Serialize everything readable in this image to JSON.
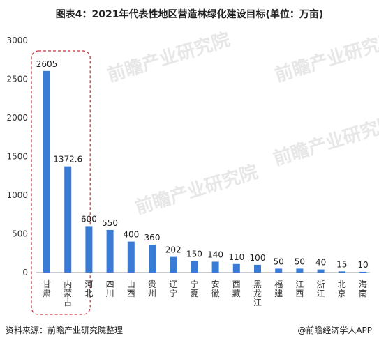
{
  "title": "图表4：2021年代表性地区营造林绿化建设目标(单位：万亩)",
  "source": "资料来源：前瞻产业研究院整理",
  "brand": "@前瞻经济学人APP",
  "watermark": "前瞻产业研究院",
  "colors": {
    "bar": "#3a7bd5",
    "highlight_box": "#c0323a"
  },
  "chart_data": {
    "type": "bar",
    "title": "图表4：2021年代表性地区营造林绿化建设目标(单位：万亩)",
    "xlabel": "",
    "ylabel": "",
    "ylim": [
      0,
      3000
    ],
    "yticks": [
      0,
      500,
      1000,
      1500,
      2000,
      2500,
      3000
    ],
    "grid": false,
    "categories": [
      "甘肃",
      "内蒙古",
      "河北",
      "四川",
      "山西",
      "贵州",
      "辽宁",
      "宁夏",
      "安徽",
      "西藏",
      "黑龙江",
      "福建",
      "江西",
      "浙江",
      "北京",
      "海南"
    ],
    "values": [
      2605,
      1372.6,
      600,
      550,
      400,
      360,
      202,
      150,
      140,
      110,
      100,
      50,
      50,
      40,
      15,
      10
    ],
    "highlighted_categories": [
      "甘肃",
      "内蒙古"
    ]
  }
}
